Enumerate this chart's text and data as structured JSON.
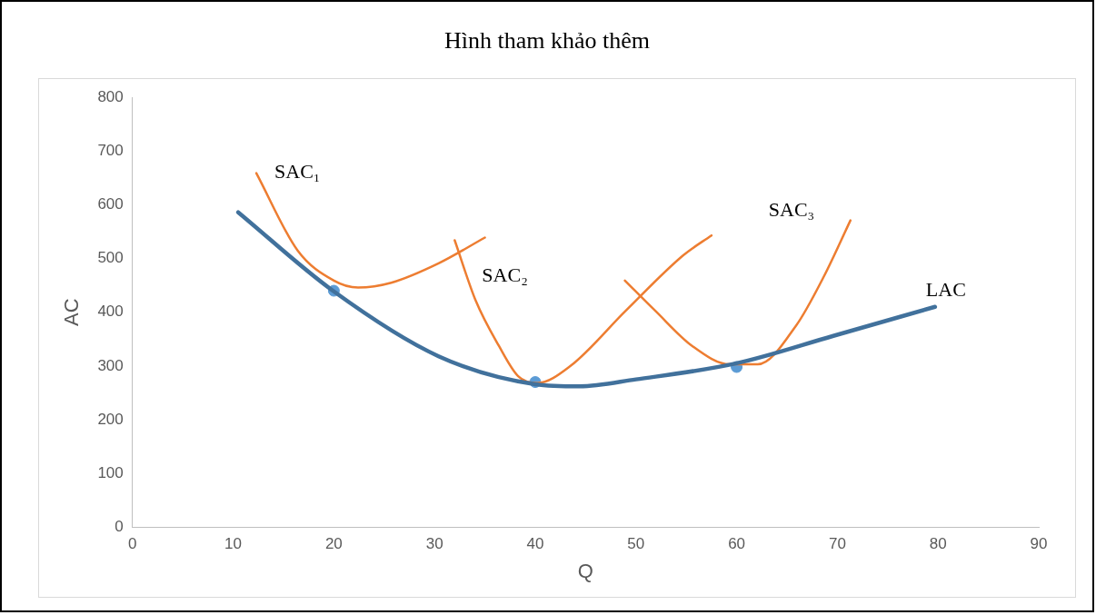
{
  "chart_data": {
    "type": "line",
    "title": "Hình tham khảo thêm",
    "xlabel": "Q",
    "ylabel": "AC",
    "xlim": [
      0,
      90
    ],
    "xticks": [
      0,
      10,
      20,
      30,
      40,
      50,
      60,
      70,
      80,
      90
    ],
    "ylim": [
      0,
      800
    ],
    "yticks": [
      0,
      100,
      200,
      300,
      400,
      500,
      600,
      700,
      800
    ],
    "grid": false,
    "legend": false,
    "series": [
      {
        "name": "LAC",
        "color": "#41719c",
        "marker": "none",
        "x": [
          10.5,
          19.9,
          30.4,
          40,
          44.4,
          50,
          60,
          69.6,
          79.7
        ],
        "values": [
          586,
          440,
          318,
          266,
          262,
          275,
          305,
          356,
          410
        ]
      },
      {
        "name": "SAC₁",
        "color": "#ed7d31",
        "marker": "none",
        "x": [
          12.3,
          16.4,
          20,
          22.4,
          25.7,
          30.4,
          35
        ],
        "values": [
          659,
          515,
          459,
          446,
          455,
          491,
          539
        ]
      },
      {
        "name": "SAC₂",
        "color": "#ed7d31",
        "marker": "none",
        "x": [
          32,
          34.1,
          36.4,
          38.3,
          40.2,
          43.5,
          49,
          54.7,
          57.5
        ],
        "values": [
          534,
          421,
          337,
          281,
          268,
          300,
          403,
          506,
          543
        ]
      },
      {
        "name": "SAC₃",
        "color": "#ed7d31",
        "marker": "none",
        "x": [
          48.9,
          51.9,
          55.6,
          59.3,
          62.1,
          65.9,
          68.7,
          71.3
        ],
        "values": [
          459,
          403,
          337,
          303,
          303,
          375,
          468,
          571
        ]
      },
      {
        "type": "scatter",
        "color": "#5b9bd5",
        "marker": "circle",
        "x": [
          20,
          40,
          60
        ],
        "values": [
          440,
          270,
          298
        ]
      }
    ]
  }
}
